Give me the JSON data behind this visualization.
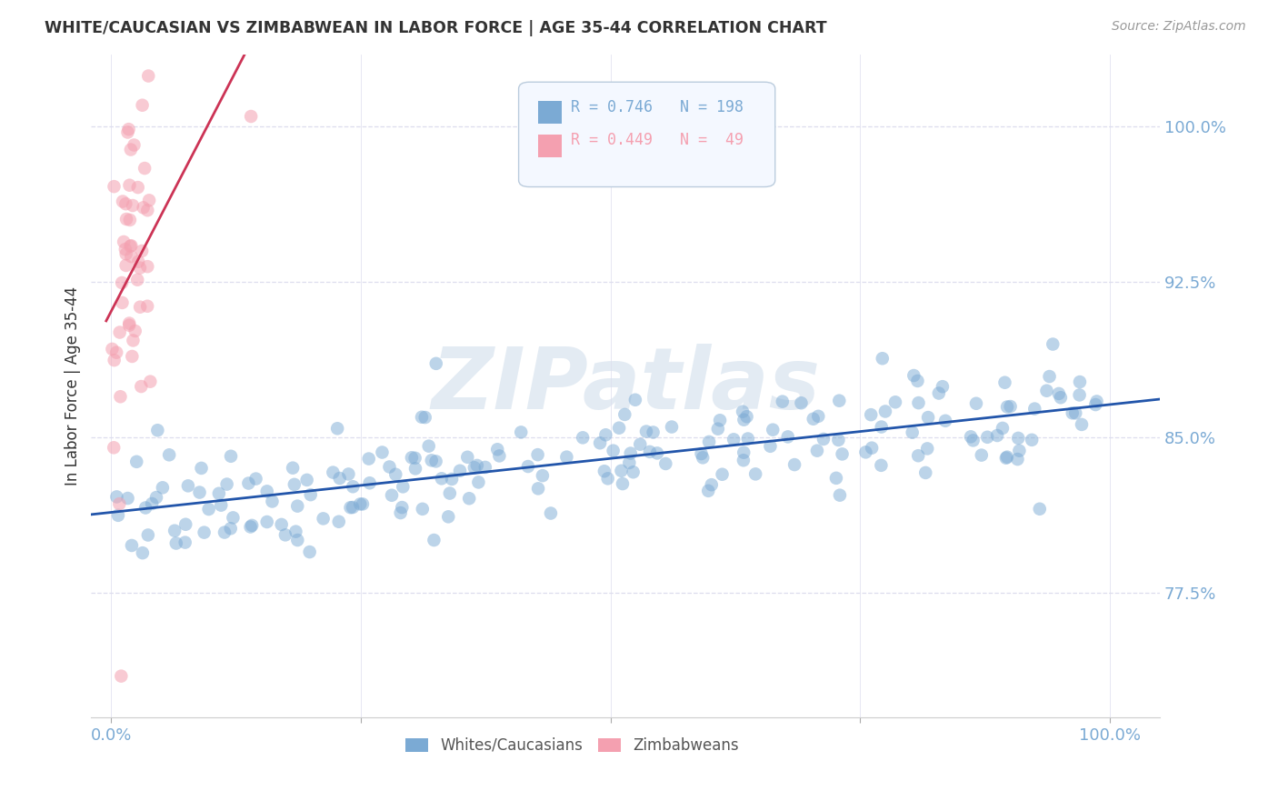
{
  "title": "WHITE/CAUCASIAN VS ZIMBABWEAN IN LABOR FORCE | AGE 35-44 CORRELATION CHART",
  "source": "Source: ZipAtlas.com",
  "ylabel": "In Labor Force | Age 35-44",
  "ytick_values": [
    0.775,
    0.85,
    0.925,
    1.0
  ],
  "xtick_values": [
    0.0,
    0.25,
    0.5,
    0.75,
    1.0
  ],
  "xticklabels": [
    "0.0%",
    "",
    "",
    "",
    "100.0%"
  ],
  "ylim": [
    0.715,
    1.035
  ],
  "xlim": [
    -0.02,
    1.05
  ],
  "legend1_label": "Whites/Caucasians",
  "legend2_label": "Zimbabweans",
  "r_blue": 0.746,
  "n_blue": 198,
  "r_pink": 0.449,
  "n_pink": 49,
  "blue_color": "#7BAAD4",
  "pink_color": "#F4A0B0",
  "blue_line_color": "#2255AA",
  "pink_line_color": "#CC3355",
  "watermark": "ZIPatlas",
  "background_color": "#FFFFFF",
  "grid_color": "#DDDDEE",
  "blue_seed": 42,
  "pink_seed": 7
}
